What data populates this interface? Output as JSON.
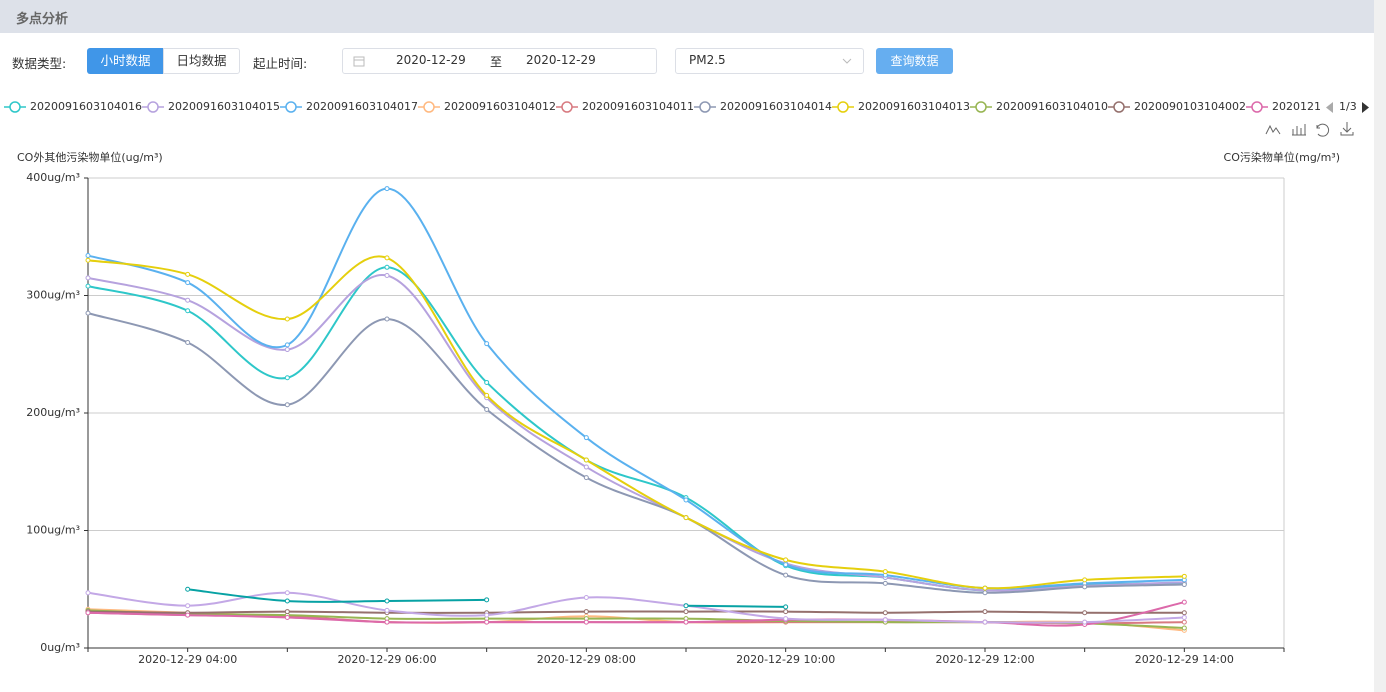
{
  "header": {
    "title": "多点分析"
  },
  "filters": {
    "data_type_label": "数据类型:",
    "tabs": [
      "小时数据",
      "日均数据"
    ],
    "time_label": "起止时间:",
    "start": "2020-12-29",
    "separator": "至",
    "end": "2020-12-29",
    "pollutant": "PM2.5",
    "query": "查询数据"
  },
  "legend_page": "1/3",
  "chart_data": {
    "type": "line",
    "y_label": "CO外其他污染物单位(ug/m³)",
    "y2_label": "CO污染物单位(mg/m³)",
    "categories": [
      null,
      "2020-12-29 04:00",
      null,
      "2020-12-29 06:00",
      null,
      "2020-12-29 08:00",
      null,
      "2020-12-29 10:00",
      null,
      "2020-12-29 12:00",
      null,
      "2020-12-29 14:00",
      null
    ],
    "ylim": [
      0,
      400
    ],
    "yticks": [
      {
        "value": 0,
        "label": "0ug/m³"
      },
      {
        "value": 100,
        "label": "100ug/m³"
      },
      {
        "value": 200,
        "label": "200ug/m³"
      },
      {
        "value": 300,
        "label": "300ug/m³"
      },
      {
        "value": 400,
        "label": "400ug/m³"
      }
    ],
    "grid": true,
    "series": [
      {
        "name": "2020091603104016",
        "color": "#2ec7c9",
        "values": [
          308,
          287,
          230,
          324,
          226,
          160,
          128,
          70,
          60,
          49,
          54,
          55,
          null
        ]
      },
      {
        "name": "2020091603104015",
        "color": "#b6a2de",
        "values": [
          315,
          296,
          254,
          317,
          213,
          154,
          111,
          72,
          60,
          49,
          53,
          56,
          null
        ]
      },
      {
        "name": "2020091603104017",
        "color": "#5ab1ef",
        "values": [
          334,
          311,
          258,
          391,
          259,
          179,
          126,
          71,
          62,
          51,
          55,
          58,
          null
        ]
      },
      {
        "name": "2020091603104012",
        "color": "#ffb980",
        "values": [
          33,
          30,
          27,
          22,
          22,
          27,
          22,
          22,
          22,
          22,
          22,
          15,
          null
        ]
      },
      {
        "name": "2020091603104011",
        "color": "#d87a80",
        "values": [
          30,
          28,
          27,
          22,
          22,
          22,
          22,
          22,
          22,
          22,
          21,
          22,
          null
        ]
      },
      {
        "name": "2020091603104014",
        "color": "#8d98b3",
        "values": [
          285,
          260,
          207,
          280,
          203,
          145,
          111,
          62,
          55,
          47,
          52,
          54,
          null
        ]
      },
      {
        "name": "2020091603104013",
        "color": "#e5cf0d",
        "values": [
          330,
          318,
          280,
          332,
          215,
          160,
          111,
          75,
          65,
          51,
          58,
          61,
          null
        ]
      },
      {
        "name": "2020091603104010",
        "color": "#97b552",
        "values": [
          32,
          29,
          28,
          25,
          25,
          25,
          25,
          23,
          22,
          22,
          21,
          17,
          null
        ]
      },
      {
        "name": "2020090103104002",
        "color": "#95706d",
        "values": [
          31,
          30,
          31,
          30,
          30,
          31,
          31,
          31,
          30,
          31,
          30,
          30,
          null
        ]
      },
      {
        "name": "2020121",
        "color": "#dc69aa",
        "values": [
          30,
          28,
          26,
          22,
          22,
          22,
          22,
          24,
          24,
          22,
          20,
          39,
          null
        ]
      },
      {
        "color": "#c3a8e6",
        "values": [
          47,
          36,
          47,
          32,
          28,
          43,
          36,
          25,
          24,
          22,
          22,
          26,
          null
        ]
      },
      {
        "color": "#07a2a4",
        "values": [
          null,
          50,
          40,
          40,
          41,
          null,
          36,
          35,
          null,
          null,
          null,
          null,
          null
        ]
      }
    ]
  }
}
